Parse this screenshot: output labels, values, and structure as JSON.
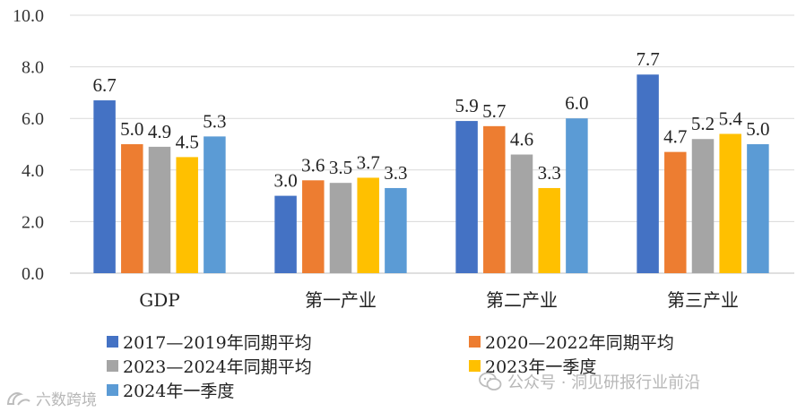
{
  "chart_data": {
    "type": "bar",
    "title": "",
    "xlabel": "",
    "ylabel": "",
    "ylim": [
      0,
      10
    ],
    "yticks": [
      "0.0",
      "2.0",
      "4.0",
      "6.0",
      "8.0",
      "10.0"
    ],
    "grid": true,
    "categories": [
      "GDP",
      "第一产业",
      "第二产业",
      "第三产业"
    ],
    "series": [
      {
        "name": "2017—2019年同期平均",
        "color": "#4472c4",
        "values": [
          6.7,
          3.0,
          5.9,
          7.7
        ],
        "labels": [
          "6.7",
          "3.0",
          "5.9",
          "7.7"
        ]
      },
      {
        "name": "2020—2022年同期平均",
        "color": "#ed7d31",
        "values": [
          5.0,
          3.6,
          5.7,
          4.7
        ],
        "labels": [
          "5.0",
          "3.6",
          "5.7",
          "4.7"
        ]
      },
      {
        "name": "2023—2024年同期平均",
        "color": "#a5a5a5",
        "values": [
          4.9,
          3.5,
          4.6,
          5.2
        ],
        "labels": [
          "4.9",
          "3.5",
          "4.6",
          "5.2"
        ]
      },
      {
        "name": "2023年一季度",
        "color": "#ffc000",
        "values": [
          4.5,
          3.7,
          3.3,
          5.4
        ],
        "labels": [
          "4.5",
          "3.7",
          "3.3",
          "5.4"
        ]
      },
      {
        "name": "2024年一季度",
        "color": "#5b9bd5",
        "values": [
          5.3,
          3.3,
          6.0,
          5.0
        ],
        "labels": [
          "5.3",
          "3.3",
          "6.0",
          "5.0"
        ]
      }
    ],
    "legend_position": "bottom"
  },
  "watermarks": {
    "left_text": "六数跨境",
    "right_text": "公众号 · 洞见研报行业前沿",
    "left_icon": "logo-icon",
    "right_icon": "wechat-icon"
  }
}
